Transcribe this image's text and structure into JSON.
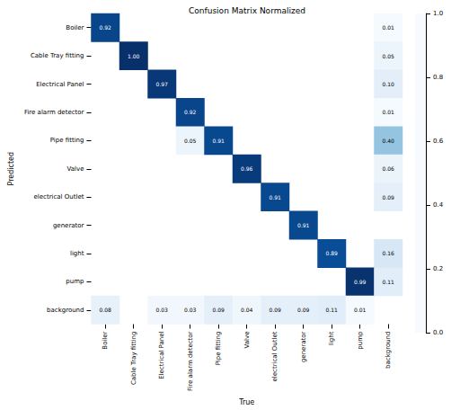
{
  "chart_data": {
    "type": "heatmap",
    "title": "Confusion Matrix Normalized",
    "x_label": "True",
    "y_label": "Predicted",
    "x_categories": [
      "Boiler",
      "Cable Tray fitting",
      "Electrical Panel",
      "Fire alarm detector",
      "Pipe fitting",
      "Valve",
      "electrical Outlet",
      "generator",
      "light",
      "pump",
      "background"
    ],
    "y_categories": [
      "Boiler",
      "Cable Tray fitting",
      "Electrical Panel",
      "Fire alarm detector",
      "Pipe fitting",
      "Valve",
      "electrical Outlet",
      "generator",
      "light",
      "pump",
      "background"
    ],
    "values": [
      [
        0.92,
        null,
        null,
        null,
        null,
        null,
        null,
        null,
        null,
        null,
        0.01
      ],
      [
        null,
        1.0,
        null,
        null,
        null,
        null,
        null,
        null,
        null,
        null,
        0.05
      ],
      [
        null,
        null,
        0.97,
        null,
        null,
        null,
        null,
        null,
        null,
        null,
        0.1
      ],
      [
        null,
        null,
        null,
        0.92,
        null,
        null,
        null,
        null,
        null,
        null,
        0.01
      ],
      [
        null,
        null,
        null,
        0.05,
        0.91,
        null,
        null,
        null,
        null,
        null,
        0.4
      ],
      [
        null,
        null,
        null,
        null,
        null,
        0.96,
        null,
        null,
        null,
        null,
        0.06
      ],
      [
        null,
        null,
        null,
        null,
        null,
        null,
        0.91,
        null,
        null,
        null,
        0.09
      ],
      [
        null,
        null,
        null,
        null,
        null,
        null,
        null,
        0.91,
        null,
        null,
        null
      ],
      [
        null,
        null,
        null,
        null,
        null,
        null,
        null,
        null,
        0.89,
        null,
        0.16
      ],
      [
        null,
        null,
        null,
        null,
        null,
        null,
        null,
        null,
        null,
        0.99,
        0.11
      ],
      [
        0.08,
        null,
        0.03,
        0.03,
        0.09,
        0.04,
        0.09,
        0.09,
        0.11,
        0.01,
        null
      ]
    ],
    "value_labels": [
      [
        "0.92",
        null,
        null,
        null,
        null,
        null,
        null,
        null,
        null,
        null,
        "0.01"
      ],
      [
        null,
        "1.00",
        null,
        null,
        null,
        null,
        null,
        null,
        null,
        null,
        "0.05"
      ],
      [
        null,
        null,
        "0.97",
        null,
        null,
        null,
        null,
        null,
        null,
        null,
        "0.10"
      ],
      [
        null,
        null,
        null,
        "0.92",
        null,
        null,
        null,
        null,
        null,
        null,
        "0.01"
      ],
      [
        null,
        null,
        null,
        "0.05",
        "0.91",
        null,
        null,
        null,
        null,
        null,
        "0.40"
      ],
      [
        null,
        null,
        null,
        null,
        null,
        "0.96",
        null,
        null,
        null,
        null,
        "0.06"
      ],
      [
        null,
        null,
        null,
        null,
        null,
        null,
        "0.91",
        null,
        null,
        null,
        "0.09"
      ],
      [
        null,
        null,
        null,
        null,
        null,
        null,
        null,
        "0.91",
        null,
        null,
        null
      ],
      [
        null,
        null,
        null,
        null,
        null,
        null,
        null,
        null,
        "0.89",
        null,
        "0.16"
      ],
      [
        null,
        null,
        null,
        null,
        null,
        null,
        null,
        null,
        null,
        "0.99",
        "0.11"
      ],
      [
        "0.08",
        null,
        "0.03",
        "0.03",
        "0.09",
        "0.04",
        "0.09",
        "0.09",
        "0.11",
        "0.01",
        null
      ]
    ],
    "colorbar": {
      "range": [
        0,
        1
      ],
      "ticks": [
        {
          "value": 0,
          "label": "0.0"
        },
        {
          "value": 0.2,
          "label": "0.2"
        },
        {
          "value": 0.4,
          "label": "0.4"
        },
        {
          "value": 0.6,
          "label": "0.6"
        },
        {
          "value": 0.8,
          "label": "0.8"
        },
        {
          "value": 1,
          "label": "1.0"
        }
      ]
    },
    "data_labels": true,
    "grid": false
  }
}
